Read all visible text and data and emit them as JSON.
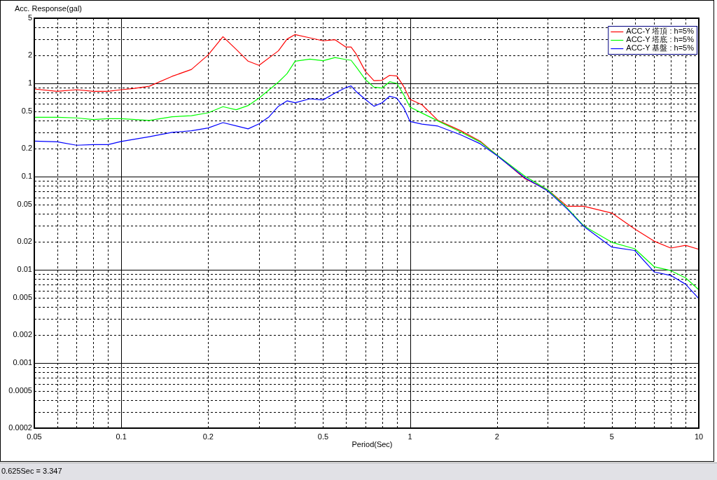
{
  "chart_data": {
    "type": "line",
    "xlabel": "Period(Sec)",
    "ylabel": "Acc. Response(gal)",
    "log": "xy",
    "grid": true,
    "legend": "top right",
    "line_style": "solid",
    "xlim": [
      0.05,
      10
    ],
    "ylim": [
      0.0002,
      5
    ],
    "xticks": [
      0.05,
      {
        "value": 0.06,
        "label": null
      },
      {
        "value": 0.07,
        "label": null
      },
      {
        "value": 0.08,
        "label": null
      },
      {
        "value": 0.09,
        "label": null
      },
      0.1,
      0.2,
      {
        "value": 0.3,
        "label": null
      },
      {
        "value": 0.4,
        "label": null
      },
      0.5,
      {
        "value": 0.6,
        "label": null
      },
      {
        "value": 0.7,
        "label": null
      },
      {
        "value": 0.8,
        "label": null
      },
      {
        "value": 0.9,
        "label": null
      },
      1,
      2,
      {
        "value": 3,
        "label": null
      },
      {
        "value": 4,
        "label": null
      },
      5,
      {
        "value": 6,
        "label": null
      },
      {
        "value": 7,
        "label": null
      },
      {
        "value": 8,
        "label": null
      },
      {
        "value": 9,
        "label": null
      },
      10
    ],
    "yticks": [
      0.0002,
      {
        "value": 0.0003,
        "label": null
      },
      {
        "value": 0.0004,
        "label": null
      },
      0.0005,
      {
        "value": 0.0006,
        "label": null
      },
      {
        "value": 0.0007,
        "label": null
      },
      {
        "value": 0.0008,
        "label": null
      },
      {
        "value": 0.0009,
        "label": null
      },
      0.001,
      0.002,
      {
        "value": 0.003,
        "label": null
      },
      {
        "value": 0.004,
        "label": null
      },
      0.005,
      {
        "value": 0.006,
        "label": null
      },
      {
        "value": 0.007,
        "label": null
      },
      {
        "value": 0.008,
        "label": null
      },
      {
        "value": 0.009,
        "label": null
      },
      0.01,
      0.02,
      {
        "value": 0.03,
        "label": null
      },
      {
        "value": 0.04,
        "label": null
      },
      0.05,
      {
        "value": 0.06,
        "label": null
      },
      {
        "value": 0.07,
        "label": null
      },
      {
        "value": 0.08,
        "label": null
      },
      {
        "value": 0.09,
        "label": null
      },
      0.1,
      0.2,
      {
        "value": 0.3,
        "label": null
      },
      {
        "value": 0.4,
        "label": null
      },
      0.5,
      {
        "value": 0.6,
        "label": null
      },
      {
        "value": 0.7,
        "label": null
      },
      {
        "value": 0.8,
        "label": null
      },
      {
        "value": 0.9,
        "label": null
      },
      1,
      2,
      {
        "value": 3,
        "label": null
      },
      {
        "value": 4,
        "label": null
      },
      5
    ],
    "series": [
      {
        "name": "ACC-Y 塔頂 : h=5%",
        "color": "#ff0000",
        "x": [
          0.05,
          0.06,
          0.07,
          0.08,
          0.09,
          0.1,
          0.11,
          0.125,
          0.15,
          0.175,
          0.2,
          0.225,
          0.25,
          0.275,
          0.3,
          0.35,
          0.375,
          0.4,
          0.45,
          0.5,
          0.55,
          0.6,
          0.625,
          0.65,
          0.7,
          0.75,
          0.8,
          0.85,
          0.9,
          0.95,
          1,
          1.1,
          1.25,
          1.5,
          1.75,
          2,
          2.5,
          3,
          3.5,
          4,
          5,
          6,
          7,
          8,
          9,
          10
        ],
        "values": [
          0.87,
          0.82,
          0.855,
          0.82,
          0.82,
          0.855,
          0.88,
          0.93,
          1.19,
          1.41,
          2.02,
          3.17,
          2.32,
          1.73,
          1.56,
          2.23,
          2.98,
          3.34,
          3.08,
          2.86,
          2.94,
          2.45,
          2.45,
          2.08,
          1.35,
          1.07,
          1.08,
          1.22,
          1.2,
          0.93,
          0.675,
          0.59,
          0.4,
          0.31,
          0.24,
          0.17,
          0.095,
          0.072,
          0.048,
          0.048,
          0.0406,
          0.0274,
          0.0203,
          0.0171,
          0.0183,
          0.0166
        ]
      },
      {
        "name": "ACC-Y 塔底 : h=5%",
        "color": "#00ff00",
        "x": [
          0.05,
          0.06,
          0.07,
          0.08,
          0.09,
          0.1,
          0.125,
          0.15,
          0.175,
          0.2,
          0.225,
          0.25,
          0.275,
          0.3,
          0.35,
          0.375,
          0.4,
          0.45,
          0.5,
          0.55,
          0.6,
          0.625,
          0.65,
          0.7,
          0.75,
          0.8,
          0.85,
          0.9,
          0.95,
          1,
          1.1,
          1.25,
          1.5,
          1.75,
          2,
          2.5,
          3,
          3.5,
          4,
          5,
          6,
          7,
          8,
          9,
          10
        ],
        "values": [
          0.433,
          0.433,
          0.426,
          0.409,
          0.418,
          0.418,
          0.4,
          0.438,
          0.45,
          0.483,
          0.562,
          0.521,
          0.578,
          0.695,
          1.03,
          1.27,
          1.73,
          1.82,
          1.75,
          1.89,
          1.8,
          1.77,
          1.51,
          1.1,
          0.91,
          0.89,
          1.04,
          1.0,
          0.76,
          0.558,
          0.48,
          0.395,
          0.3,
          0.235,
          0.17,
          0.101,
          0.072,
          0.046,
          0.0295,
          0.0197,
          0.0168,
          0.0108,
          0.0098,
          0.0082,
          0.0061
        ]
      },
      {
        "name": "ACC-Y 基盤 : h=5%",
        "color": "#0000ff",
        "x": [
          0.05,
          0.06,
          0.07,
          0.08,
          0.09,
          0.1,
          0.125,
          0.15,
          0.175,
          0.2,
          0.225,
          0.25,
          0.275,
          0.3,
          0.325,
          0.35,
          0.375,
          0.4,
          0.45,
          0.5,
          0.55,
          0.6,
          0.625,
          0.65,
          0.7,
          0.75,
          0.8,
          0.85,
          0.9,
          0.95,
          1,
          1.1,
          1.25,
          1.5,
          1.75,
          2,
          2.5,
          3,
          3.5,
          4,
          5,
          6,
          7,
          8,
          9,
          10
        ],
        "values": [
          0.24,
          0.236,
          0.217,
          0.22,
          0.22,
          0.238,
          0.268,
          0.298,
          0.31,
          0.332,
          0.379,
          0.35,
          0.325,
          0.368,
          0.438,
          0.568,
          0.649,
          0.619,
          0.683,
          0.664,
          0.789,
          0.9,
          0.938,
          0.82,
          0.675,
          0.568,
          0.619,
          0.728,
          0.695,
          0.552,
          0.39,
          0.365,
          0.348,
          0.28,
          0.225,
          0.168,
          0.097,
          0.07,
          0.045,
          0.0291,
          0.0175,
          0.0161,
          0.0095,
          0.0087,
          0.007,
          0.0049
        ]
      }
    ],
    "annotations": [
      "0.625Sec = 3.347"
    ]
  }
}
